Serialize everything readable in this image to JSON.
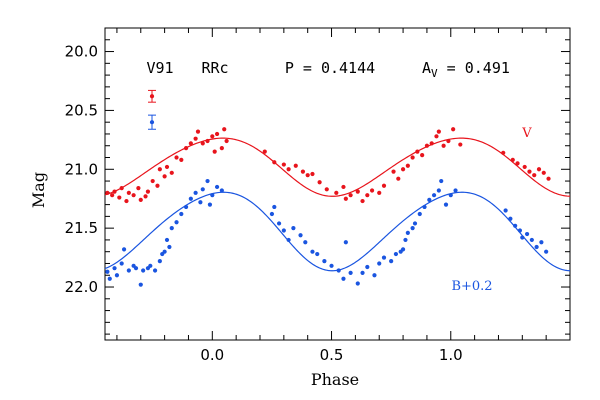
{
  "chart_data": {
    "type": "scatter",
    "xlabel": "Phase",
    "ylabel": "Mag",
    "xlim": [
      -0.45,
      1.5
    ],
    "ylim": [
      22.45,
      19.8
    ],
    "y_inverted": true,
    "x_ticks": [
      0.0,
      0.5,
      1.0
    ],
    "x_tick_labels": [
      "0.0",
      "0.5",
      "1.0"
    ],
    "y_ticks": [
      20.0,
      20.5,
      21.0,
      21.5,
      22.0
    ],
    "y_tick_labels": [
      "20.0",
      "20.5",
      "21.0",
      "21.5",
      "22.0"
    ],
    "grid": false,
    "info": {
      "star": "V91",
      "type": "RRc",
      "period": "P = 0.4144",
      "amplitude_prefix": "A",
      "amplitude_sub": "V",
      "amplitude_value": " = 0.491"
    },
    "series": [
      {
        "name": "V",
        "color": "#e8141c",
        "fit_model": {
          "mean": 20.97,
          "a1": 0.245,
          "phi1": 0.02,
          "a2": 0.02,
          "phi2": 0.2
        },
        "x": [
          -0.44,
          -0.42,
          -0.41,
          -0.39,
          -0.38,
          -0.36,
          -0.35,
          -0.33,
          -0.31,
          -0.3,
          -0.28,
          -0.27,
          -0.25,
          -0.23,
          -0.22,
          -0.2,
          -0.19,
          -0.17,
          -0.15,
          -0.13,
          -0.11,
          -0.09,
          -0.07,
          -0.06,
          -0.04,
          -0.02,
          0.0,
          0.01,
          0.02,
          0.04,
          0.05,
          0.06,
          0.22,
          0.26,
          0.3,
          0.32,
          0.35,
          0.38,
          0.4,
          0.42,
          0.45,
          0.48,
          0.52,
          0.55,
          0.56,
          0.58,
          0.61,
          0.63,
          0.65,
          0.67,
          0.7,
          0.72,
          0.76,
          0.78,
          0.8,
          0.82,
          0.84,
          0.86,
          0.88,
          0.9,
          0.92,
          0.94,
          0.95,
          0.97,
          0.99,
          1.01,
          1.04,
          1.22,
          1.26,
          1.28,
          1.31,
          1.33,
          1.35,
          1.37,
          1.39,
          1.41
        ],
        "y": [
          21.2,
          21.22,
          21.19,
          21.24,
          21.16,
          21.27,
          21.2,
          21.22,
          21.16,
          21.26,
          21.23,
          21.19,
          21.1,
          21.14,
          21.0,
          21.06,
          20.98,
          21.03,
          20.9,
          20.92,
          20.82,
          20.78,
          20.74,
          20.68,
          20.78,
          20.76,
          20.72,
          20.85,
          20.7,
          20.82,
          20.66,
          20.76,
          20.85,
          20.94,
          20.96,
          21.0,
          20.97,
          21.02,
          21.05,
          21.04,
          21.11,
          21.17,
          21.2,
          21.15,
          21.25,
          21.22,
          21.19,
          21.27,
          21.22,
          21.18,
          21.2,
          21.14,
          21.02,
          21.08,
          21.0,
          20.97,
          20.9,
          20.85,
          20.88,
          20.8,
          20.78,
          20.72,
          20.68,
          20.8,
          20.76,
          20.66,
          20.79,
          20.86,
          20.92,
          20.95,
          20.98,
          21.02,
          21.05,
          21.0,
          21.03,
          21.08
        ]
      },
      {
        "name": "B+0.2",
        "color": "#1a55e0",
        "fit_model": {
          "mean": 21.51,
          "a1": 0.33,
          "phi1": 0.02,
          "a2": 0.03,
          "phi2": 0.2
        },
        "x": [
          -0.44,
          -0.43,
          -0.41,
          -0.4,
          -0.38,
          -0.37,
          -0.35,
          -0.33,
          -0.32,
          -0.3,
          -0.29,
          -0.27,
          -0.26,
          -0.24,
          -0.22,
          -0.21,
          -0.2,
          -0.19,
          -0.18,
          -0.17,
          -0.15,
          -0.13,
          -0.11,
          -0.09,
          -0.07,
          -0.05,
          -0.04,
          -0.02,
          -0.01,
          0.0,
          0.02,
          0.04,
          0.25,
          0.26,
          0.28,
          0.3,
          0.32,
          0.34,
          0.37,
          0.39,
          0.42,
          0.44,
          0.47,
          0.5,
          0.53,
          0.55,
          0.56,
          0.58,
          0.61,
          0.63,
          0.65,
          0.68,
          0.7,
          0.72,
          0.75,
          0.77,
          0.79,
          0.8,
          0.81,
          0.82,
          0.84,
          0.85,
          0.87,
          0.89,
          0.91,
          0.93,
          0.95,
          0.96,
          0.98,
          1.0,
          1.02,
          1.23,
          1.25,
          1.27,
          1.29,
          1.3,
          1.32,
          1.34,
          1.36,
          1.38,
          1.4
        ],
        "y": [
          21.87,
          21.93,
          21.84,
          21.9,
          21.8,
          21.68,
          21.86,
          21.82,
          21.84,
          21.98,
          21.86,
          21.84,
          21.82,
          21.86,
          21.78,
          21.72,
          21.7,
          21.6,
          21.66,
          21.5,
          21.45,
          21.38,
          21.32,
          21.25,
          21.2,
          21.28,
          21.17,
          21.1,
          21.3,
          21.22,
          21.15,
          21.18,
          21.38,
          21.32,
          21.46,
          21.52,
          21.6,
          21.5,
          21.56,
          21.62,
          21.7,
          21.72,
          21.78,
          21.82,
          21.86,
          21.93,
          21.62,
          21.88,
          21.97,
          21.88,
          21.83,
          21.9,
          21.8,
          21.75,
          21.78,
          21.72,
          21.7,
          21.68,
          21.6,
          21.54,
          21.5,
          21.46,
          21.38,
          21.32,
          21.26,
          21.22,
          21.18,
          21.1,
          21.3,
          21.22,
          21.18,
          21.35,
          21.42,
          21.48,
          21.52,
          21.58,
          21.55,
          21.6,
          21.66,
          21.62,
          21.7
        ]
      }
    ],
    "error_bars": [
      {
        "series": "V",
        "y": 20.38,
        "err": 0.05
      },
      {
        "series": "B+0.2",
        "y": 20.6,
        "err": 0.06
      }
    ]
  }
}
